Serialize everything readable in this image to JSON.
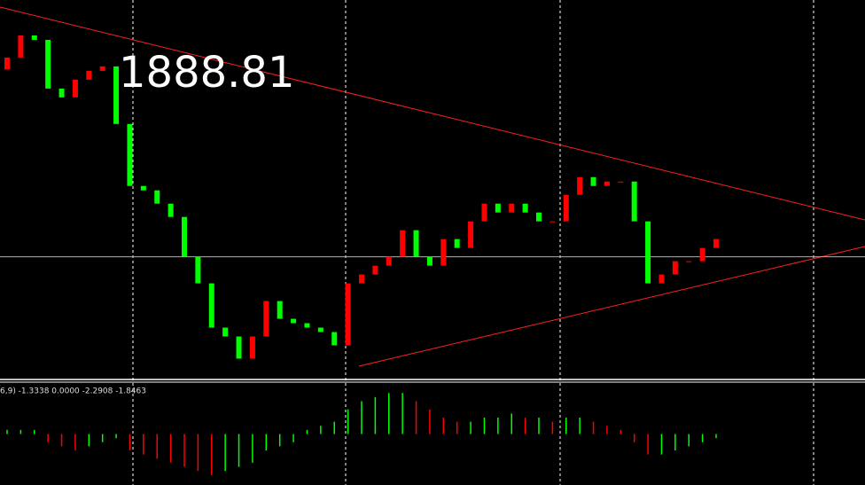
{
  "chart_data": {
    "type": "candlestick",
    "price": 1888.81,
    "ylim": [
      1850,
      1970
    ],
    "up_color": "#ff0000",
    "down_color": "#00ff00",
    "open": [
      1948.0,
      1951.8,
      1958.8,
      1957.4,
      1942.0,
      1939.2,
      1944.8,
      1947.6,
      1949.0,
      1930.8,
      1911.2,
      1909.8,
      1905.6,
      1901.4,
      1888.8,
      1880.4,
      1866.4,
      1863.6,
      1856.6,
      1863.6,
      1874.8,
      1869.2,
      1867.8,
      1866.4,
      1865.0,
      1860.8,
      1880.4,
      1883.2,
      1886.0,
      1888.8,
      1897.2,
      1888.8,
      1886.0,
      1894.4,
      1891.6,
      1900.0,
      1905.6,
      1902.8,
      1905.6,
      1902.8,
      1900.0,
      1900.0,
      1908.4,
      1914.0,
      1911.2,
      1912.6,
      1912.6,
      1900.0,
      1880.4,
      1883.2,
      1887.4,
      1887.4,
      1891.6
    ],
    "close": [
      1951.8,
      1958.8,
      1957.4,
      1942.0,
      1939.2,
      1944.8,
      1947.6,
      1949.0,
      1930.8,
      1911.2,
      1909.8,
      1905.6,
      1901.4,
      1888.8,
      1880.4,
      1866.4,
      1863.6,
      1856.6,
      1863.6,
      1874.8,
      1869.2,
      1867.8,
      1866.4,
      1865.0,
      1860.8,
      1880.4,
      1883.2,
      1886.0,
      1888.8,
      1897.2,
      1888.8,
      1886.0,
      1894.4,
      1891.6,
      1900.0,
      1905.6,
      1902.8,
      1905.6,
      1902.8,
      1900.0,
      1900.0,
      1908.4,
      1914.0,
      1911.2,
      1912.6,
      1912.6,
      1900.0,
      1880.4,
      1883.2,
      1887.4,
      1887.4,
      1891.6,
      1894.4
    ],
    "indicator": {
      "label": "6,9) -1.3338 0.0000 -2.2908 -1.8463",
      "ylim": [
        -6,
        6
      ],
      "values": [
        0.5,
        0.5,
        0.5,
        -1,
        -1.5,
        -2,
        -1.5,
        -1,
        -0.5,
        -2,
        -2.5,
        -3,
        -3.5,
        -4,
        -4.5,
        -5,
        -4.5,
        -4,
        -3.5,
        -2,
        -1.5,
        -1,
        0.5,
        1,
        1.5,
        3,
        4,
        4.5,
        5,
        5,
        4,
        3,
        2,
        1.5,
        1.5,
        2,
        2,
        2.5,
        2,
        2,
        1.5,
        2,
        2,
        1.5,
        1,
        0.5,
        -1,
        -2.5,
        -2.5,
        -2,
        -1.5,
        -1,
        -0.5
      ]
    }
  }
}
